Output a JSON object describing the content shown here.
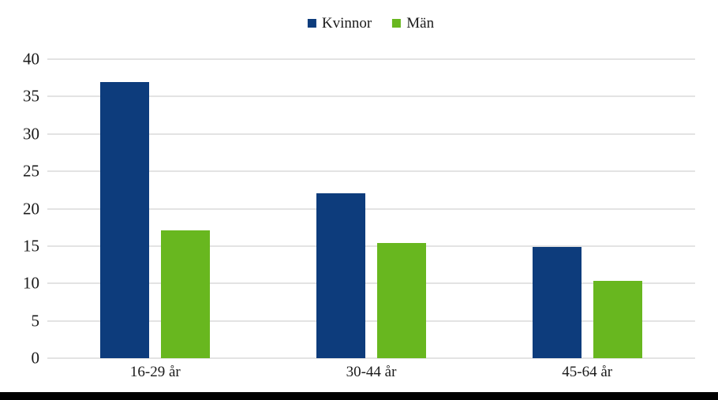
{
  "colors": {
    "kvinnor": "#0d3c7c",
    "man": "#68b71f",
    "gridline": "#e3e3e3",
    "text": "#1a1a1a",
    "background": "#ffffff",
    "bottom_bar": "#000000"
  },
  "chart_data": {
    "type": "bar",
    "categories": [
      "16-29 år",
      "30-44 år",
      "45-64 år"
    ],
    "series": [
      {
        "name": "Kvinnor",
        "color": "#0d3c7c",
        "values": [
          36.9,
          22.1,
          14.9
        ]
      },
      {
        "name": "Män",
        "color": "#68b71f",
        "values": [
          17.1,
          15.4,
          10.3
        ]
      }
    ],
    "title": "",
    "xlabel": "",
    "ylabel": "",
    "ylim": [
      0,
      40
    ],
    "y_ticks": [
      0,
      5,
      10,
      15,
      20,
      25,
      30,
      35,
      40
    ],
    "grid": true,
    "legend_position": "top-center"
  }
}
